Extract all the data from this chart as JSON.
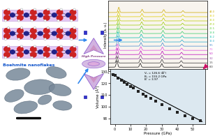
{
  "volume_data": {
    "pressure": [
      -1,
      0,
      2,
      4,
      6,
      8,
      10,
      12,
      15,
      18,
      20,
      23,
      26,
      30,
      35,
      40,
      45,
      50,
      55
    ],
    "volume": [
      127.2,
      126.5,
      124.2,
      122.5,
      120.8,
      119.2,
      117.5,
      115.8,
      113.2,
      110.8,
      109.2,
      107.0,
      104.8,
      102.0,
      98.5,
      95.5,
      92.5,
      90.0,
      88.0
    ],
    "fit_pressure": [
      -2,
      56
    ],
    "fit_volume": [
      127.8,
      87.5
    ],
    "annotation": "V₀ = 126.6 (Å³)\nB₀ = 155.2 GPa\nB’ = 3.97",
    "xlabel": "Pressure (GPa)",
    "ylabel": "Volume (Å³)",
    "xlim": [
      -3,
      58
    ],
    "ylim": [
      85,
      132
    ],
    "yticks": [
      90,
      100,
      110,
      120,
      130
    ],
    "xticks": [
      0,
      10,
      20,
      30,
      40,
      50
    ],
    "bg_color": "#dce8f0"
  },
  "xrd_colors": [
    "#111111",
    "#333333",
    "#883399",
    "#bb00bb",
    "#dd44dd",
    "#4488cc",
    "#22aacc",
    "#00bbaa",
    "#33cc66",
    "#66cc33",
    "#99cc00",
    "#bbcc00",
    "#ddcc00",
    "#ccaa00"
  ],
  "layout_bg": "#ffffff",
  "arrow_blue": "#3388ee",
  "arrow_pink": "#cc1166",
  "label_text": "Boehmite nanoflakes",
  "label_color": "#1155cc",
  "dac_purple": "#8855cc",
  "dac_pink": "#cc88bb",
  "dac_lavender": "#ccaadd"
}
